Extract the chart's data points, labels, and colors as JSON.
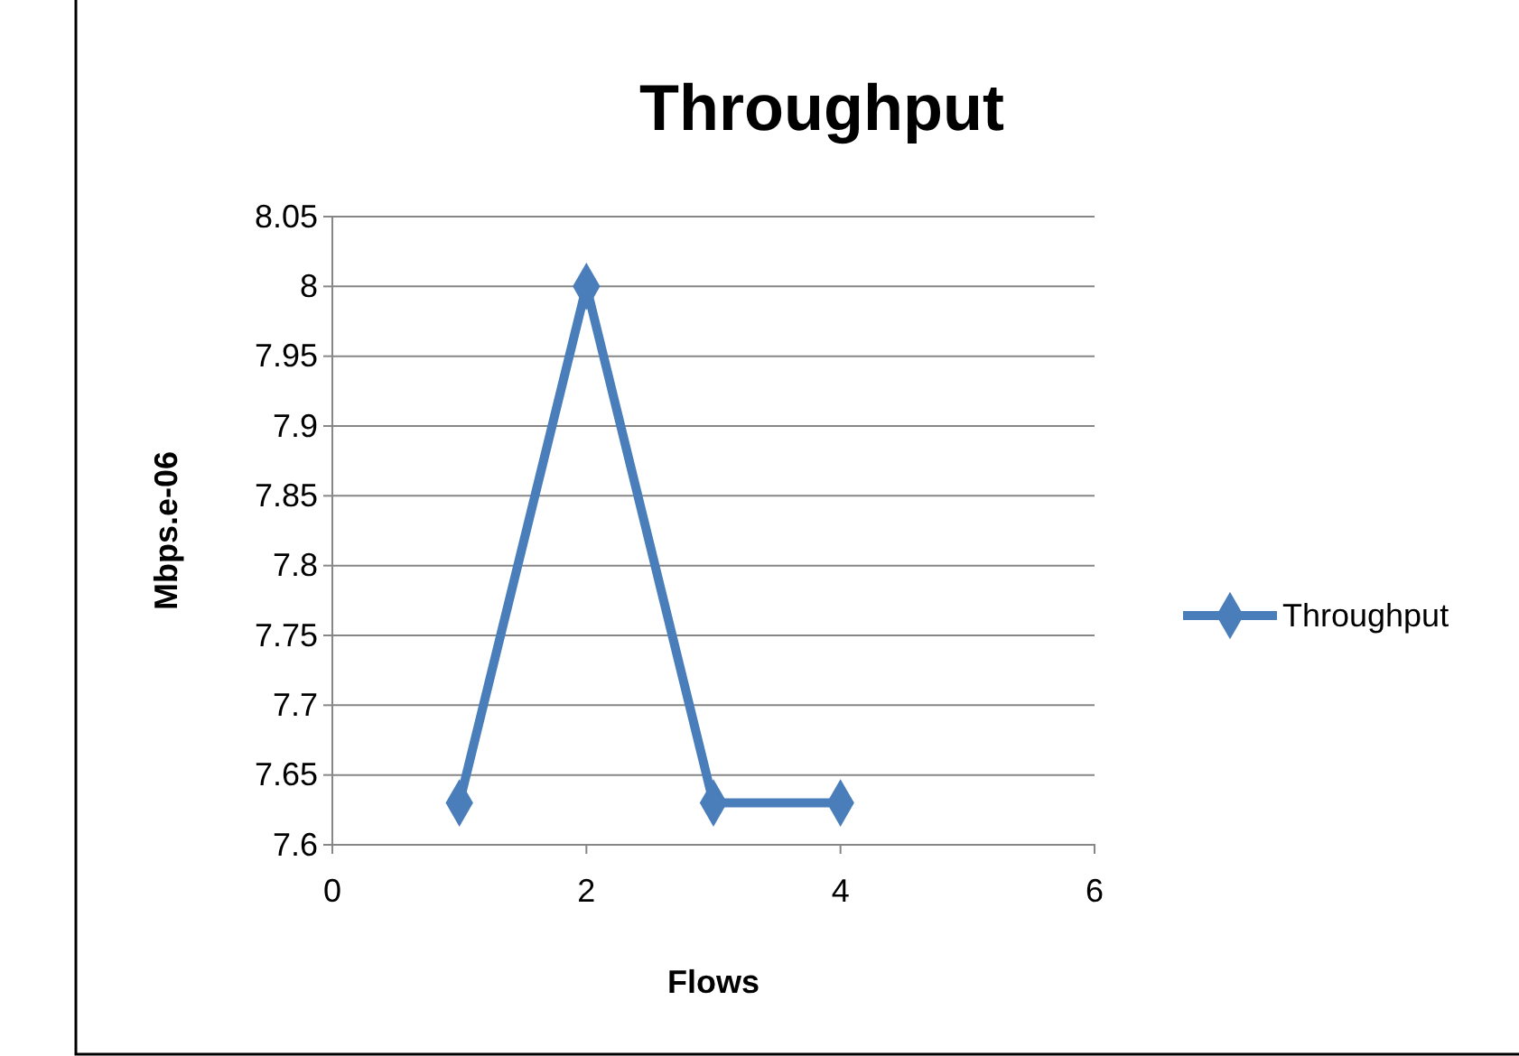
{
  "chart_data": {
    "type": "line",
    "title": "Throughput",
    "xlabel": "Flows",
    "ylabel": "Mbps.e-06",
    "x": [
      1,
      2,
      3,
      4
    ],
    "series": [
      {
        "name": "Throughput",
        "color": "#4a7ebb",
        "values": [
          7.63,
          8,
          7.63,
          7.63
        ]
      }
    ],
    "xlim": [
      0,
      6
    ],
    "xticks": [
      0,
      2,
      4,
      6
    ],
    "ylim": [
      7.6,
      8.05
    ],
    "yticks": [
      7.6,
      7.65,
      7.7,
      7.75,
      7.8,
      7.85,
      7.9,
      7.95,
      8,
      8.05
    ],
    "grid": "y",
    "legend": "right",
    "marker": "diamond",
    "line_style": "solid"
  }
}
